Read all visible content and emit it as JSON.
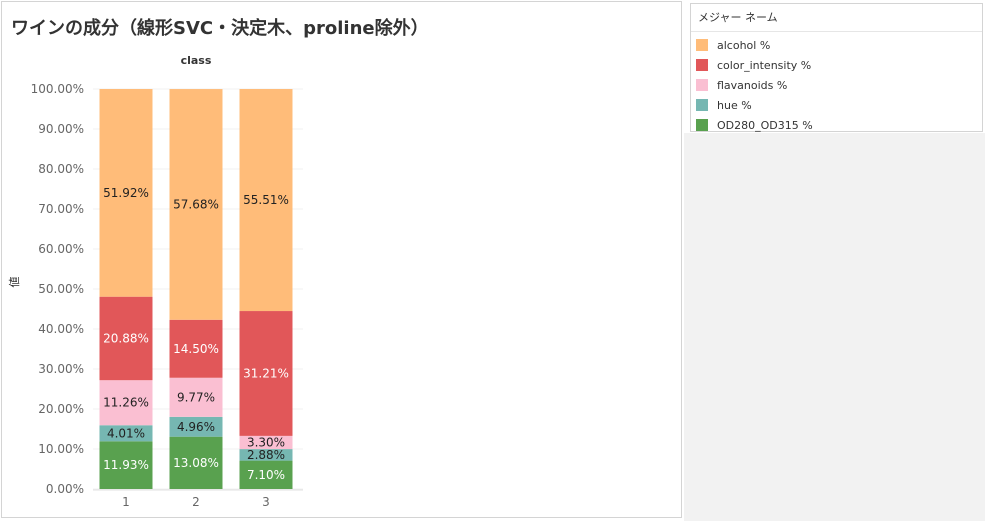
{
  "title": "ワインの成分（線形SVC・決定木、proline除外）",
  "legend": {
    "title": "メジャー ネーム",
    "items": [
      {
        "label": "alcohol %",
        "color": "#ffbc79"
      },
      {
        "label": "color_intensity %",
        "color": "#e15759"
      },
      {
        "label": "flavanoids %",
        "color": "#fabfd2"
      },
      {
        "label": "hue %",
        "color": "#76b7b2"
      },
      {
        "label": "OD280_OD315 %",
        "color": "#59a14f"
      }
    ]
  },
  "chart_data": {
    "type": "bar",
    "stacked": true,
    "column_header": "class",
    "ylabel": "値",
    "ylim": [
      0,
      100
    ],
    "y_ticks": [
      "0.00%",
      "10.00%",
      "20.00%",
      "30.00%",
      "40.00%",
      "50.00%",
      "60.00%",
      "70.00%",
      "80.00%",
      "90.00%",
      "100.00%"
    ],
    "categories": [
      "1",
      "2",
      "3"
    ],
    "series": [
      {
        "name": "OD280_OD315 %",
        "color": "#59a14f",
        "values": [
          11.93,
          13.08,
          7.1
        ],
        "labels": [
          "11.93%",
          "13.08%",
          "7.10%"
        ],
        "label_color": "#ffffff"
      },
      {
        "name": "hue %",
        "color": "#76b7b2",
        "values": [
          4.01,
          4.96,
          2.88
        ],
        "labels": [
          "4.01%",
          "4.96%",
          "2.88%"
        ],
        "label_color": "#222222"
      },
      {
        "name": "flavanoids %",
        "color": "#fabfd2",
        "values": [
          11.26,
          9.77,
          3.3
        ],
        "labels": [
          "11.26%",
          "9.77%",
          "3.30%"
        ],
        "label_color": "#222222"
      },
      {
        "name": "color_intensity %",
        "color": "#e15759",
        "values": [
          20.88,
          14.5,
          31.21
        ],
        "labels": [
          "20.88%",
          "14.50%",
          "31.21%"
        ],
        "label_color": "#ffffff"
      },
      {
        "name": "alcohol %",
        "color": "#ffbc79",
        "values": [
          51.92,
          57.68,
          55.51
        ],
        "labels": [
          "51.92%",
          "57.68%",
          "55.51%"
        ],
        "label_color": "#222222"
      }
    ],
    "grid": true,
    "legend_position": "right"
  }
}
